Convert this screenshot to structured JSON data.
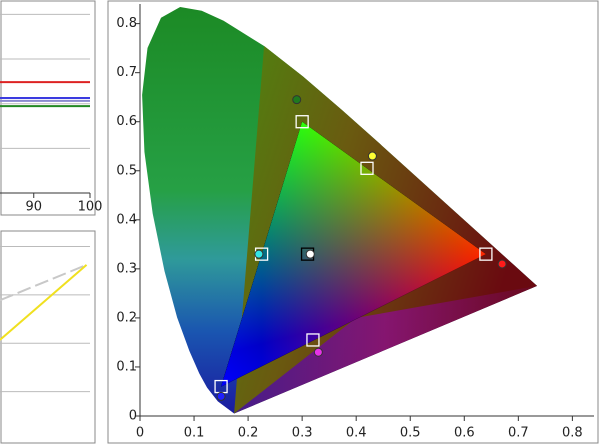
{
  "chart_data": [
    {
      "type": "scatter",
      "xlim": [
        0,
        0.84
      ],
      "ylim": [
        0,
        0.84
      ],
      "xticks": [
        0,
        0.1,
        0.2,
        0.3,
        0.4,
        0.5,
        0.6,
        0.7,
        0.8
      ],
      "yticks": [
        0,
        0.1,
        0.2,
        0.3,
        0.4,
        0.5,
        0.6,
        0.7,
        0.8
      ],
      "series": [
        {
          "marker": "square",
          "x": [
            0.64,
            0.3,
            0.15,
            0.31,
            0.225,
            0.32,
            0.42
          ],
          "y": [
            0.33,
            0.6,
            0.06,
            0.33,
            0.33,
            0.155,
            0.505
          ],
          "colors": [
            "#ffffff",
            "#ffffff",
            "#ffffff",
            "#000000",
            "#ffffff",
            "#ffffff",
            "#ffffff"
          ]
        },
        {
          "marker": "circle",
          "x": [
            0.67,
            0.29,
            0.15,
            0.315,
            0.22,
            0.33,
            0.43
          ],
          "y": [
            0.31,
            0.645,
            0.04,
            0.33,
            0.33,
            0.13,
            0.53
          ],
          "colors": [
            "#ff1a1a",
            "#1f7a1f",
            "#2020ff",
            "#ffffff",
            "#33e6e6",
            "#e633e6",
            "#ffff33"
          ]
        }
      ]
    },
    {
      "type": "line",
      "xlim": [
        84,
        100
      ],
      "ylim": [
        0,
        4
      ],
      "xticks": [
        90,
        100
      ],
      "x": [
        84,
        100
      ],
      "series": [
        {
          "color": "#dd2222",
          "values": [
            2.31,
            2.31
          ]
        },
        {
          "color": "#3b3be0",
          "values": [
            1.98,
            1.98
          ]
        },
        {
          "color": "#8a8ad0",
          "values": [
            1.92,
            1.92
          ]
        },
        {
          "color": "#228822",
          "values": [
            1.81,
            1.81
          ]
        }
      ]
    },
    {
      "type": "line",
      "xlim": [
        0,
        104
      ],
      "ylim": [
        -0.7,
        3.6
      ],
      "x": [
        0,
        100
      ],
      "series": [
        {
          "color": "#c8c8c8",
          "style": "dashed",
          "values": [
            2.19,
            2.92
          ]
        },
        {
          "color": "#f0e020",
          "style": "solid",
          "values": [
            1.37,
            2.92
          ]
        }
      ]
    }
  ]
}
